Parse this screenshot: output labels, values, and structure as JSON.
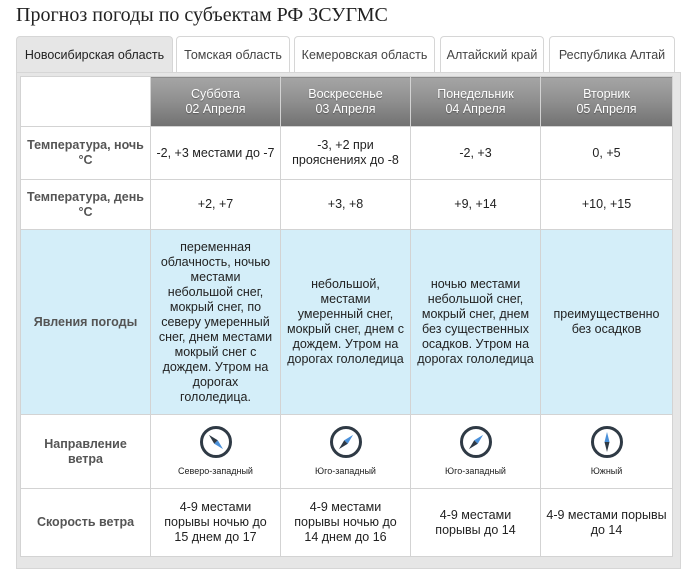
{
  "page": {
    "title": "Прогноз погоды по субъектам РФ ЗСУГМС"
  },
  "tabs": [
    {
      "label": "Новосибирская область",
      "active": true
    },
    {
      "label": "Томская область",
      "active": false
    },
    {
      "label": "Кемеровская область",
      "active": false
    },
    {
      "label": "Алтайский край",
      "active": false
    },
    {
      "label": "Республика Алтай",
      "active": false
    }
  ],
  "forecast": {
    "days": [
      {
        "weekday": "Суббота",
        "date": "02 Апреля"
      },
      {
        "weekday": "Воскресенье",
        "date": "03 Апреля"
      },
      {
        "weekday": "Понедельник",
        "date": "04 Апреля"
      },
      {
        "weekday": "Вторник",
        "date": "05 Апреля"
      }
    ],
    "rows": {
      "temp_night": {
        "label": "Температура, ночь °C",
        "values": [
          "-2, +3 местами до -7",
          "-3, +2 при прояснениях до -8",
          "-2, +3",
          "0, +5"
        ]
      },
      "temp_day": {
        "label": "Температура, день °C",
        "values": [
          "+2, +7",
          "+3, +8",
          "+9, +14",
          "+10, +15"
        ]
      },
      "phenomena": {
        "label": "Явления погоды",
        "values": [
          "переменная облачность, ночью местами небольшой снег, мокрый снег, по северу умеренный снег, днем местами мокрый снег с дождем. Утром на дорогах гололедица.",
          "небольшой, местами умеренный снег, мокрый снег, днем с дождем. Утром на дорогах гололедица",
          "ночью местами небольшой снег, мокрый снег, днем без существенных осадков. Утром на дорогах гололедица",
          "преимущественно без осадков"
        ]
      },
      "wind_dir": {
        "label": "Направление ветра",
        "values": [
          {
            "text": "Северо-западный",
            "icon": "compass-icon"
          },
          {
            "text": "Юго-западный",
            "icon": "compass-icon"
          },
          {
            "text": "Юго-западный",
            "icon": "compass-icon"
          },
          {
            "text": "Южный",
            "icon": "compass-icon"
          }
        ]
      },
      "wind_speed": {
        "label": "Скорость ветра",
        "values": [
          "4-9 местами порывы ночью до 15 днем до 17",
          "4-9 местами порывы ночью до 14 днем до 16",
          "4-9 местами порывы до 14",
          "4-9 местами порывы до 14"
        ]
      }
    }
  },
  "colors": {
    "header_dark": "#717171",
    "header_light": "#a5a5a5",
    "phenomena_bg": "#d4eef9",
    "tab_active_bg": "#e6e6e6",
    "compass_ring": "#2f3a45",
    "compass_arrow_blue": "#4a90d9"
  }
}
